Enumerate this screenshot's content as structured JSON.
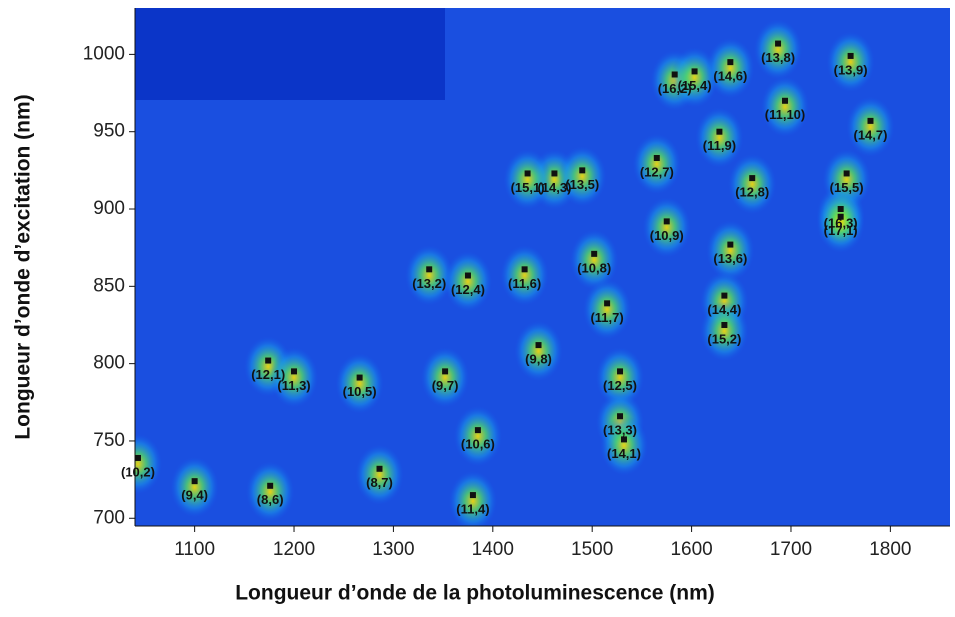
{
  "chart_data": {
    "type": "scatter",
    "x_label": "Longueur d’onde de la photoluminescence (nm)",
    "y_label": "Longueur d’onde d’excitation (nm)",
    "xlim": [
      1040,
      1860
    ],
    "ylim": [
      695,
      1030
    ],
    "xticks": [
      1100,
      1200,
      1300,
      1400,
      1500,
      1600,
      1700,
      1800
    ],
    "yticks": [
      700,
      750,
      800,
      850,
      900,
      950,
      1000
    ],
    "labels": [
      "(10,2)",
      "(9,4)",
      "(8,6)",
      "(12,1)",
      "(11,3)",
      "(10,5)",
      "(8,7)",
      "(9,7)",
      "(13,2)",
      "(12,4)",
      "(11,6)",
      "(10,6)",
      "(11,4)",
      "(9,8)",
      "(10,8)",
      "(11,7)",
      "(12,5)",
      "(13,3)",
      "(14,1)",
      "(14,3)",
      "(15,1)",
      "(13,5)",
      "(12,7)",
      "(10,9)",
      "(16,2)",
      "(15,4)",
      "(14,6)",
      "(11,9)",
      "(12,8)",
      "(13,6)",
      "(14,4)",
      "(15,2)",
      "(13,8)",
      "(11,10)",
      "(13,9)",
      "(14,7)",
      "(15,5)",
      "(16,3)",
      "(17,1)"
    ],
    "x": [
      1043,
      1100,
      1176,
      1174,
      1200,
      1266,
      1286,
      1352,
      1336,
      1375,
      1432,
      1385,
      1380,
      1446,
      1502,
      1515,
      1528,
      1528,
      1532,
      1462,
      1435,
      1490,
      1565,
      1575,
      1583,
      1603,
      1639,
      1628,
      1661,
      1639,
      1633,
      1633,
      1687,
      1694,
      1760,
      1780,
      1756,
      1750,
      1750
    ],
    "values": [
      739,
      724,
      721,
      802,
      795,
      791,
      732,
      795,
      861,
      857,
      861,
      757,
      715,
      812,
      871,
      839,
      795,
      766,
      751,
      923,
      923,
      925,
      933,
      892,
      987,
      989,
      995,
      950,
      920,
      877,
      844,
      825,
      1007,
      970,
      999,
      957,
      923,
      900,
      895
    ],
    "color": "#111111"
  }
}
